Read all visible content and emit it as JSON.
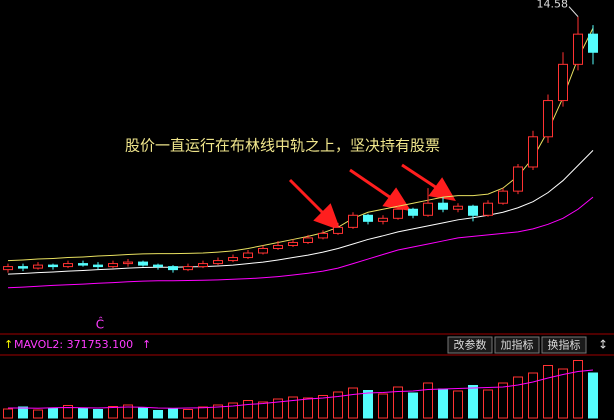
{
  "chart_data": {
    "type": "candlestick",
    "annotation": "股价一直运行在布林线中轨之上，坚决持有股票",
    "max_label": "14.58",
    "signal_label": "Ĉ",
    "ylim": [
      4.2,
      14.8
    ],
    "up_color": "#ff3232",
    "down_color": "#54fcfc",
    "upper_color": "#e8e060",
    "middle_color": "#ffffff",
    "lower_color": "#ff00ff",
    "open": [
      6.2,
      6.3,
      6.25,
      6.35,
      6.3,
      6.4,
      6.35,
      6.3,
      6.4,
      6.45,
      6.35,
      6.3,
      6.2,
      6.3,
      6.4,
      6.5,
      6.6,
      6.75,
      6.9,
      7.0,
      7.1,
      7.25,
      7.4,
      7.6,
      8.0,
      7.8,
      7.9,
      8.2,
      8.0,
      8.4,
      8.2,
      8.3,
      8.0,
      8.4,
      8.8,
      9.6,
      10.6,
      11.8,
      13.0,
      14.0
    ],
    "close": [
      6.3,
      6.25,
      6.35,
      6.3,
      6.4,
      6.35,
      6.3,
      6.4,
      6.45,
      6.35,
      6.3,
      6.2,
      6.3,
      6.4,
      6.5,
      6.6,
      6.75,
      6.9,
      7.0,
      7.1,
      7.25,
      7.4,
      7.6,
      8.0,
      7.8,
      7.9,
      8.2,
      8.0,
      8.4,
      8.2,
      8.3,
      8.0,
      8.4,
      8.8,
      9.6,
      10.6,
      11.8,
      13.0,
      14.0,
      13.4
    ],
    "low": [
      6.1,
      6.15,
      6.2,
      6.2,
      6.25,
      6.3,
      6.2,
      6.25,
      6.3,
      6.3,
      6.2,
      6.1,
      6.15,
      6.25,
      6.35,
      6.45,
      6.55,
      6.7,
      6.85,
      6.95,
      7.05,
      7.2,
      7.35,
      7.55,
      7.7,
      7.7,
      7.85,
      7.9,
      7.95,
      8.1,
      8.1,
      7.8,
      7.95,
      8.35,
      8.7,
      9.5,
      10.4,
      11.6,
      12.8,
      13.0
    ],
    "high": [
      6.4,
      6.4,
      6.45,
      6.4,
      6.5,
      6.5,
      6.45,
      6.5,
      6.55,
      6.5,
      6.4,
      6.35,
      6.4,
      6.5,
      6.6,
      6.7,
      6.85,
      7.0,
      7.15,
      7.2,
      7.35,
      7.5,
      7.75,
      8.1,
      8.05,
      8.0,
      8.3,
      8.25,
      8.9,
      8.6,
      8.4,
      8.35,
      8.5,
      8.9,
      9.7,
      10.8,
      12.0,
      13.4,
      14.58,
      14.3
    ],
    "upper": [
      6.5,
      6.52,
      6.55,
      6.57,
      6.6,
      6.62,
      6.65,
      6.67,
      6.7,
      6.72,
      6.73,
      6.73,
      6.74,
      6.75,
      6.78,
      6.82,
      6.9,
      7.0,
      7.1,
      7.2,
      7.3,
      7.42,
      7.6,
      7.9,
      8.1,
      8.2,
      8.3,
      8.4,
      8.5,
      8.6,
      8.65,
      8.65,
      8.7,
      8.9,
      9.3,
      9.9,
      10.8,
      11.9,
      13.2,
      14.2
    ],
    "middle": [
      6.05,
      6.07,
      6.1,
      6.12,
      6.15,
      6.17,
      6.2,
      6.22,
      6.25,
      6.27,
      6.28,
      6.28,
      6.29,
      6.3,
      6.32,
      6.35,
      6.4,
      6.45,
      6.52,
      6.6,
      6.68,
      6.78,
      6.9,
      7.05,
      7.2,
      7.32,
      7.45,
      7.55,
      7.65,
      7.75,
      7.85,
      7.92,
      8.0,
      8.1,
      8.25,
      8.45,
      8.75,
      9.15,
      9.65,
      10.15
    ],
    "lower": [
      5.6,
      5.62,
      5.65,
      5.68,
      5.7,
      5.72,
      5.75,
      5.77,
      5.8,
      5.82,
      5.83,
      5.83,
      5.84,
      5.85,
      5.86,
      5.88,
      5.9,
      5.93,
      5.97,
      6.02,
      6.08,
      6.15,
      6.25,
      6.4,
      6.55,
      6.7,
      6.85,
      6.95,
      7.05,
      7.15,
      7.25,
      7.3,
      7.35,
      7.4,
      7.45,
      7.55,
      7.7,
      7.9,
      8.2,
      8.6
    ],
    "volume": {
      "label": "MAVOL2: 371753.100",
      "ylim": [
        0,
        1200000
      ],
      "values": [
        180000,
        220000,
        160000,
        200000,
        250000,
        190000,
        170000,
        230000,
        260000,
        210000,
        150000,
        190000,
        170000,
        220000,
        260000,
        300000,
        350000,
        320000,
        380000,
        420000,
        400000,
        450000,
        520000,
        600000,
        550000,
        480000,
        620000,
        500000,
        700000,
        580000,
        540000,
        650000,
        560000,
        700000,
        820000,
        900000,
        1050000,
        980000,
        1150000,
        900000
      ],
      "ma": [
        200000,
        200000,
        195000,
        205000,
        210000,
        205000,
        200000,
        210000,
        220000,
        215000,
        200000,
        195000,
        200000,
        205000,
        220000,
        240000,
        270000,
        290000,
        320000,
        350000,
        380000,
        400000,
        430000,
        470000,
        500000,
        510000,
        530000,
        540000,
        570000,
        580000,
        590000,
        600000,
        610000,
        620000,
        660000,
        720000,
        800000,
        870000,
        930000,
        960000
      ],
      "ma_color": "#ff00ff"
    }
  },
  "toolbar": {
    "buttons": [
      "改参数",
      "加指标",
      "换指标"
    ]
  }
}
